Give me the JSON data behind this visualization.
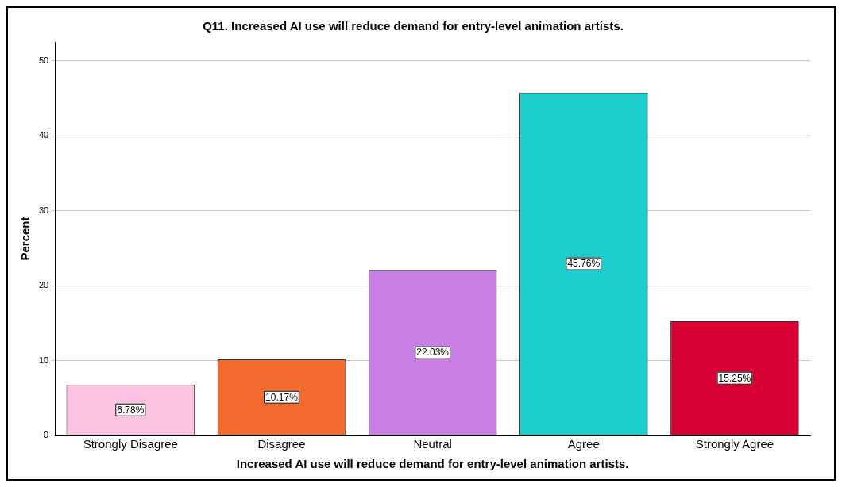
{
  "chart_data": {
    "type": "bar",
    "title": "Q11. Increased AI use will reduce demand for entry-level animation artists.",
    "xlabel": "Increased AI use will reduce demand for entry-level animation artists.",
    "ylabel": "Percent",
    "categories": [
      "Strongly Disagree",
      "Disagree",
      "Neutral",
      "Agree",
      "Strongly Agree"
    ],
    "values": [
      6.78,
      10.17,
      22.03,
      45.76,
      15.25
    ],
    "colors": [
      "#fdc2e1",
      "#f26a2e",
      "#c97fe4",
      "#1dcccc",
      "#d60032"
    ],
    "value_labels": [
      "6.78%",
      "10.17%",
      "22.03%",
      "45.76%",
      "15.25%"
    ],
    "ylim": [
      0,
      52.5
    ],
    "yticks": [
      0,
      10,
      20,
      30,
      40,
      50
    ],
    "grid": "y",
    "legend": false
  }
}
